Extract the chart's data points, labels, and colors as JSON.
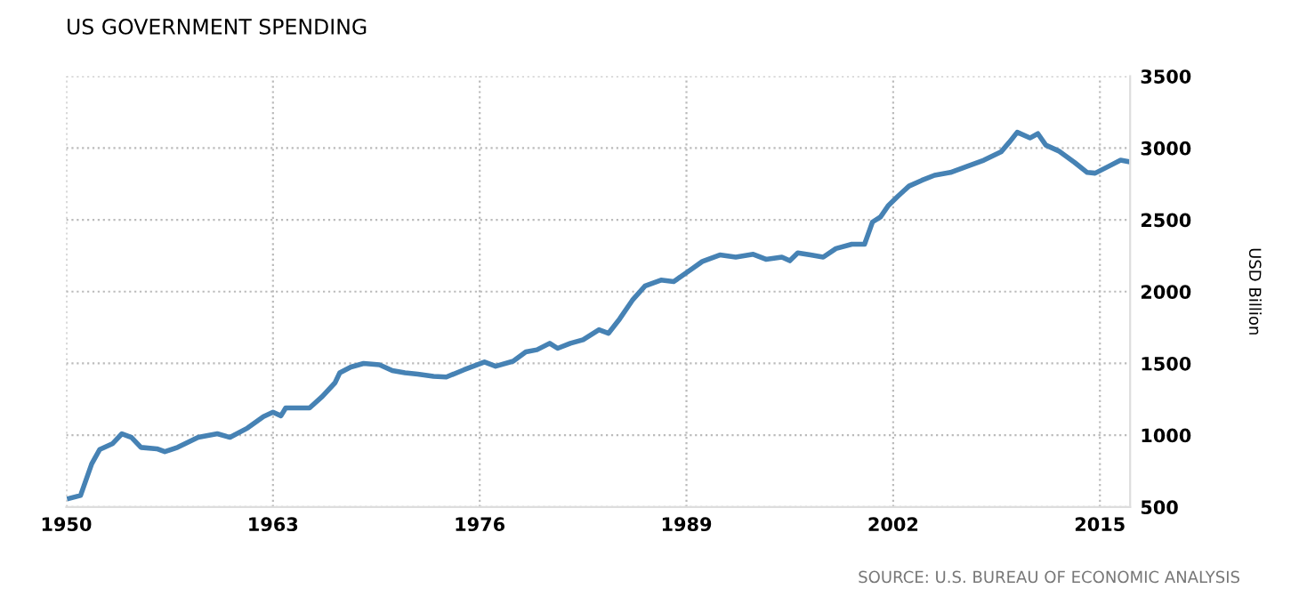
{
  "chart_data": {
    "type": "line",
    "title": "US GOVERNMENT SPENDING",
    "ylabel": "USD Billion",
    "annotations": [
      "SOURCE: U.S. BUREAU OF ECONOMIC ANALYSIS"
    ],
    "xlim": [
      1950,
      2016.9
    ],
    "xticks": [
      1950,
      1963,
      1976,
      1989,
      2002,
      2015
    ],
    "ylim": [
      500,
      3500
    ],
    "yticks": [
      500,
      1000,
      1500,
      2000,
      2500,
      3000,
      3500
    ],
    "grid": true,
    "marker": "none",
    "line_style": "solid",
    "series": [
      {
        "color": "#4682b4",
        "x": [
          1950.2,
          1950.9,
          1951.6,
          1952.1,
          1952.9,
          1953.5,
          1954.1,
          1954.7,
          1955.7,
          1956.2,
          1957.0,
          1958.3,
          1959.5,
          1960.3,
          1961.4,
          1962.4,
          1963.0,
          1963.5,
          1963.8,
          1965.3,
          1966.1,
          1966.9,
          1967.2,
          1967.9,
          1968.7,
          1969.7,
          1970.5,
          1971.3,
          1972.1,
          1973.1,
          1973.9,
          1975.0,
          1976.3,
          1977.0,
          1978.1,
          1978.9,
          1979.6,
          1980.4,
          1980.9,
          1981.7,
          1982.5,
          1983.5,
          1984.1,
          1984.8,
          1985.6,
          1986.4,
          1987.4,
          1988.2,
          1989.3,
          1990.0,
          1991.1,
          1992.1,
          1993.2,
          1994.0,
          1995.0,
          1995.5,
          1996.0,
          1996.8,
          1997.6,
          1998.4,
          1999.4,
          2000.2,
          2000.7,
          2001.2,
          2001.7,
          2002.3,
          2003.0,
          2003.8,
          2004.6,
          2005.6,
          2006.7,
          2007.7,
          2008.8,
          2009.3,
          2009.8,
          2010.6,
          2011.1,
          2011.6,
          2012.4,
          2013.4,
          2014.2,
          2014.7,
          2015.5,
          2016.3,
          2016.8
        ],
        "values": [
          560,
          580,
          800,
          900,
          940,
          1010,
          985,
          915,
          905,
          885,
          915,
          985,
          1010,
          985,
          1050,
          1130,
          1160,
          1135,
          1190,
          1190,
          1270,
          1365,
          1435,
          1475,
          1500,
          1490,
          1450,
          1435,
          1425,
          1410,
          1405,
          1455,
          1510,
          1480,
          1515,
          1580,
          1595,
          1640,
          1605,
          1640,
          1665,
          1735,
          1710,
          1810,
          1940,
          2040,
          2080,
          2070,
          2155,
          2210,
          2255,
          2240,
          2260,
          2225,
          2240,
          2215,
          2270,
          2255,
          2240,
          2300,
          2330,
          2330,
          2485,
          2520,
          2600,
          2665,
          2735,
          2775,
          2810,
          2830,
          2875,
          2915,
          2975,
          3040,
          3110,
          3070,
          3100,
          3020,
          2980,
          2900,
          2830,
          2825,
          2870,
          2915,
          2905
        ]
      }
    ]
  }
}
